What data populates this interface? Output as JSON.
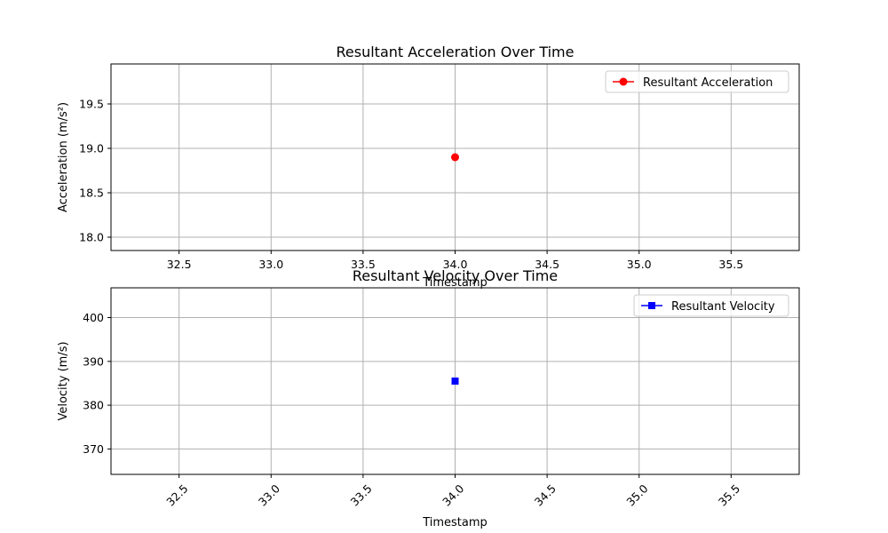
{
  "chart_data": [
    {
      "type": "line",
      "title": "Resultant Acceleration Over Time",
      "xlabel": "Timestamp",
      "ylabel": "Acceleration (m/s²)",
      "xlim": [
        32.13,
        35.87
      ],
      "ylim": [
        17.85,
        19.95
      ],
      "xticks": [
        32.5,
        33.0,
        33.5,
        34.0,
        34.5,
        35.0,
        35.5
      ],
      "yticks": [
        18.0,
        18.5,
        19.0,
        19.5
      ],
      "xtick_rotation": 0,
      "grid": true,
      "legend_position": "upper right",
      "series": [
        {
          "name": "Resultant Acceleration",
          "color": "#ff0000",
          "marker": "circle",
          "x": [
            34.0
          ],
          "y": [
            18.9
          ]
        }
      ]
    },
    {
      "type": "line",
      "title": "Resultant Velocity Over Time",
      "xlabel": "Timestamp",
      "ylabel": "Velocity (m/s)",
      "xlim": [
        32.13,
        35.87
      ],
      "ylim": [
        364.2,
        406.8
      ],
      "xticks": [
        32.5,
        33.0,
        33.5,
        34.0,
        34.5,
        35.0,
        35.5
      ],
      "yticks": [
        370,
        380,
        390,
        400
      ],
      "xtick_rotation": -45,
      "grid": true,
      "legend_position": "upper right",
      "series": [
        {
          "name": "Resultant Velocity",
          "color": "#0000ff",
          "marker": "square",
          "x": [
            34.0
          ],
          "y": [
            385.5
          ]
        }
      ]
    }
  ]
}
